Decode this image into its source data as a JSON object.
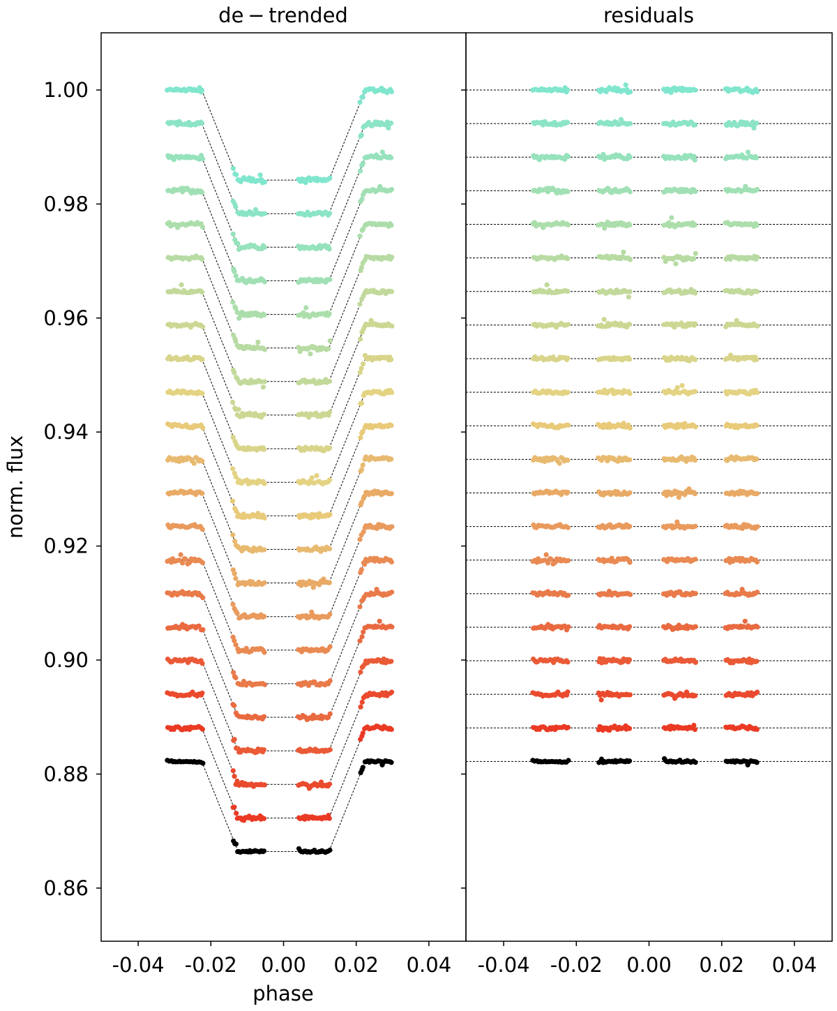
{
  "chart_data": [
    {
      "type": "scatter",
      "title": "de − trended",
      "xlabel": "phase",
      "ylabel": "norm. flux",
      "xlim": [
        -0.05,
        0.05
      ],
      "ylim": [
        0.845,
        1.01
      ],
      "xticks": [
        -0.04,
        -0.02,
        0.0,
        0.02,
        0.04
      ],
      "xtick_labels": [
        "-0.04",
        "-0.02",
        "0.00",
        "0.02",
        "0.04"
      ],
      "yticks": [
        0.86,
        0.88,
        0.9,
        0.92,
        0.94,
        0.96,
        0.98,
        1.0
      ],
      "ytick_labels": [
        "0.86",
        "0.88",
        "0.90",
        "0.92",
        "0.94",
        "0.96",
        "0.98",
        "1.00"
      ],
      "grid": false,
      "light_curves": {
        "count": 21,
        "offset_step": -0.00589,
        "first_baseline": 1.0,
        "transit_depth": 0.0158,
        "egress_phase": 0.0125,
        "ingress_phase": 0.0225,
        "data_phase_ranges": [
          [
            -0.032,
            -0.022
          ],
          [
            -0.014,
            -0.005
          ],
          [
            0.004,
            0.013
          ],
          [
            0.021,
            0.03
          ]
        ],
        "model": "dashed-line",
        "last_series_color": "#000000"
      }
    },
    {
      "type": "scatter",
      "title": "residuals",
      "xlim": [
        -0.05,
        0.05
      ],
      "xticks": [
        -0.04,
        -0.02,
        0.0,
        0.02,
        0.04
      ],
      "xtick_labels": [
        "-0.04",
        "-0.02",
        "0.00",
        "0.02",
        "0.04"
      ],
      "grid": false,
      "residual_baselines_from": "light_curves",
      "model": "dashed-horizontal-lines"
    }
  ],
  "colors": {
    "series_top": "#80e6cd",
    "series_mid": "#e8d27e",
    "series_bottom": "#ea3a24",
    "reference": "#000000",
    "model_line": "#000000"
  }
}
